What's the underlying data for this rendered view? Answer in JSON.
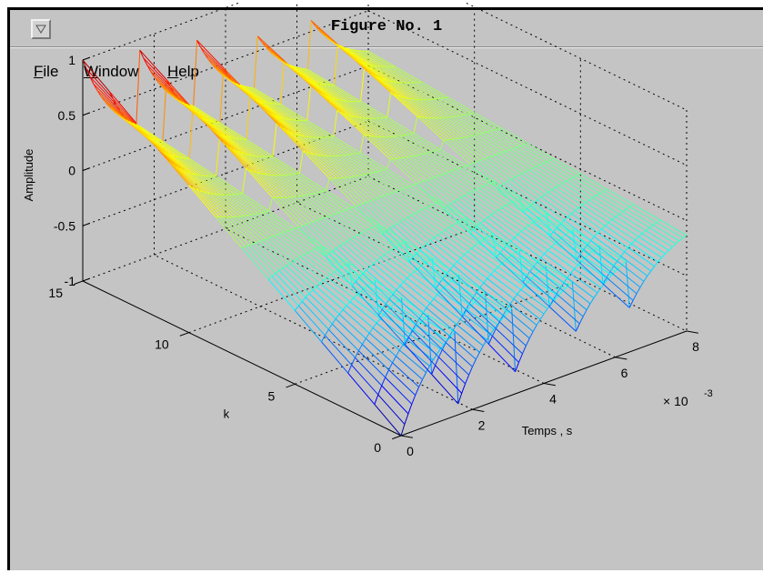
{
  "window": {
    "title": "Figure No. 1",
    "menu": [
      {
        "mnemonic": "F",
        "rest": "ile"
      },
      {
        "mnemonic": "W",
        "rest": "indow"
      },
      {
        "mnemonic": "H",
        "rest": "elp"
      }
    ]
  },
  "chart_data": {
    "type": "surface-mesh",
    "colormap": "jet",
    "grid": true,
    "box": true,
    "xlabel": "Temps , s",
    "ylabel": "k",
    "zlabel": "Amplitude",
    "x_exponent_label": "× 10",
    "x_exponent": "-3",
    "xlim": [
      0,
      8
    ],
    "ylim": [
      0,
      15
    ],
    "zlim": [
      -1,
      1
    ],
    "x_ticks": [
      "0",
      "2",
      "4",
      "6",
      "8"
    ],
    "y_ticks": [
      "0",
      "5",
      "10",
      "15"
    ],
    "z_ticks": [
      "-1",
      "-0.5",
      "0",
      "0.5",
      "1"
    ],
    "pulse_starts_ms": [
      0,
      1.6,
      3.2,
      4.8,
      6.4
    ],
    "pulse_period_ms": 1.6,
    "decay_time_constant_ms": 1.1,
    "k_rows": 13
  }
}
